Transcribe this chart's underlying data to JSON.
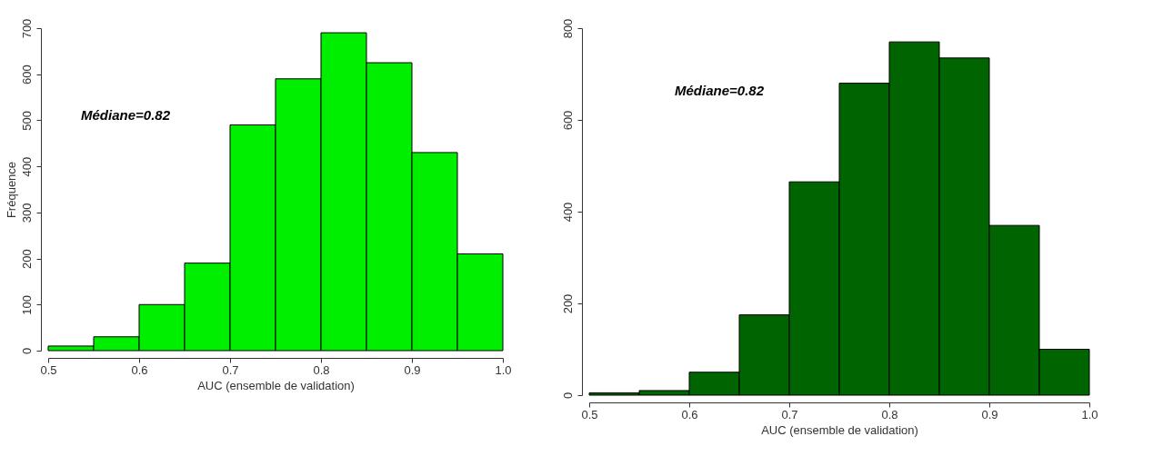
{
  "chart_data": [
    {
      "type": "histogram",
      "xlabel": "AUC (ensemble de validation)",
      "ylabel": "Fréquence",
      "annotations": [
        "Médiane=0.82"
      ],
      "bins": [
        0.5,
        0.55,
        0.6,
        0.65,
        0.7,
        0.75,
        0.8,
        0.85,
        0.9,
        0.95,
        1.0
      ],
      "values": [
        10,
        30,
        100,
        190,
        490,
        590,
        690,
        625,
        430,
        210
      ],
      "color": "#00ee00",
      "xlim": [
        0.5,
        1.0
      ],
      "ylim": [
        0,
        700
      ],
      "xticks": [
        0.5,
        0.6,
        0.7,
        0.8,
        0.9,
        {
          "value": 1.0,
          "label": "1.0"
        }
      ],
      "yticks": [
        0,
        100,
        200,
        300,
        400,
        500,
        600,
        700
      ],
      "grid": false
    },
    {
      "type": "histogram",
      "xlabel": "AUC (ensemble de validation)",
      "annotations": [
        "Médiane=0.82"
      ],
      "bins": [
        0.5,
        0.55,
        0.6,
        0.65,
        0.7,
        0.75,
        0.8,
        0.85,
        0.9,
        0.95,
        1.0
      ],
      "values": [
        5,
        10,
        50,
        175,
        465,
        680,
        770,
        735,
        370,
        100
      ],
      "color": "#006400",
      "xlim": [
        0.5,
        1.0
      ],
      "ylim": [
        0,
        800
      ],
      "xticks": [
        0.5,
        0.6,
        0.7,
        0.8,
        0.9,
        {
          "value": 1.0,
          "label": "1.0"
        }
      ],
      "yticks": [
        0,
        200,
        400,
        600,
        800
      ],
      "grid": false
    }
  ]
}
